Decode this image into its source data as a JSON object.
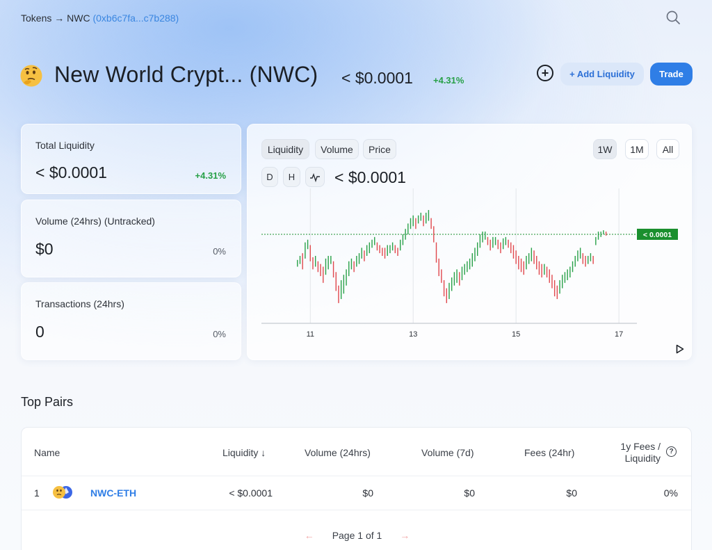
{
  "breadcrumb": {
    "root": "Tokens",
    "arrow": "→",
    "symbol": "NWC",
    "address": "(0xb6c7fa...c7b288)"
  },
  "header": {
    "emoji": "🤔",
    "title": "New World Crypt... (NWC)",
    "price": "< $0.0001",
    "change": "+4.31%",
    "add_liquidity_label": "+ Add Liquidity",
    "trade_label": "Trade"
  },
  "stats": [
    {
      "label": "Total Liquidity",
      "value": "< $0.0001",
      "change": "+4.31%",
      "positive": true
    },
    {
      "label": "Volume (24hrs) (Untracked)",
      "value": "$0",
      "change": "0%",
      "positive": false
    },
    {
      "label": "Transactions (24hrs)",
      "value": "0",
      "change": "0%",
      "positive": false
    }
  ],
  "chart_panel": {
    "tabs": [
      "Liquidity",
      "Volume",
      "Price"
    ],
    "ranges": [
      "1W",
      "1M",
      "All"
    ],
    "selected_range": "1W",
    "intervals": [
      "D",
      "H"
    ],
    "line_icon": "pulse-line-icon",
    "price": "< $0.0001",
    "last_label": "< 0.0001"
  },
  "chart_data": {
    "type": "candlestick",
    "title": "",
    "xlabel": "",
    "ylabel": "",
    "x_ticks": [
      "11",
      "13",
      "15",
      "17"
    ],
    "x_range": [
      10.05,
      17.35
    ],
    "y_range": [
      0,
      100
    ],
    "last_value_label": "< 0.0001",
    "last_value_level": 66,
    "colors": {
      "up": "#27a047",
      "down": "#e0474c",
      "last": "#1a8f2e"
    },
    "candles": [
      [
        10.75,
        42,
        47
      ],
      [
        10.8,
        44,
        50
      ],
      [
        10.85,
        40,
        52
      ],
      [
        10.9,
        48,
        60
      ],
      [
        10.95,
        55,
        62
      ],
      [
        11.0,
        46,
        58
      ],
      [
        11.05,
        40,
        49
      ],
      [
        11.1,
        42,
        50
      ],
      [
        11.15,
        38,
        46
      ],
      [
        11.2,
        35,
        44
      ],
      [
        11.25,
        30,
        42
      ],
      [
        11.3,
        36,
        48
      ],
      [
        11.35,
        40,
        50
      ],
      [
        11.4,
        44,
        50
      ],
      [
        11.45,
        34,
        46
      ],
      [
        11.5,
        24,
        38
      ],
      [
        11.55,
        15,
        28
      ],
      [
        11.6,
        18,
        32
      ],
      [
        11.65,
        22,
        36
      ],
      [
        11.7,
        28,
        40
      ],
      [
        11.75,
        35,
        46
      ],
      [
        11.8,
        40,
        48
      ],
      [
        11.85,
        38,
        46
      ],
      [
        11.9,
        42,
        50
      ],
      [
        11.95,
        44,
        52
      ],
      [
        12.0,
        48,
        56
      ],
      [
        12.05,
        46,
        54
      ],
      [
        12.1,
        50,
        58
      ],
      [
        12.15,
        52,
        60
      ],
      [
        12.2,
        56,
        62
      ],
      [
        12.25,
        58,
        64
      ],
      [
        12.3,
        54,
        60
      ],
      [
        12.35,
        52,
        58
      ],
      [
        12.4,
        50,
        56
      ],
      [
        12.45,
        48,
        56
      ],
      [
        12.5,
        50,
        58
      ],
      [
        12.55,
        52,
        58
      ],
      [
        12.6,
        54,
        60
      ],
      [
        12.65,
        52,
        58
      ],
      [
        12.7,
        50,
        56
      ],
      [
        12.75,
        54,
        62
      ],
      [
        12.8,
        58,
        66
      ],
      [
        12.85,
        62,
        70
      ],
      [
        12.9,
        66,
        74
      ],
      [
        12.95,
        70,
        78
      ],
      [
        13.0,
        72,
        80
      ],
      [
        13.05,
        70,
        78
      ],
      [
        13.1,
        74,
        80
      ],
      [
        13.15,
        76,
        82
      ],
      [
        13.2,
        72,
        80
      ],
      [
        13.25,
        74,
        82
      ],
      [
        13.3,
        76,
        84
      ],
      [
        13.35,
        70,
        78
      ],
      [
        13.4,
        60,
        72
      ],
      [
        13.45,
        45,
        60
      ],
      [
        13.5,
        35,
        48
      ],
      [
        13.55,
        30,
        40
      ],
      [
        13.6,
        20,
        32
      ],
      [
        13.65,
        15,
        26
      ],
      [
        13.7,
        18,
        30
      ],
      [
        13.75,
        24,
        34
      ],
      [
        13.8,
        28,
        38
      ],
      [
        13.85,
        30,
        40
      ],
      [
        13.9,
        28,
        38
      ],
      [
        13.95,
        32,
        42
      ],
      [
        14.0,
        36,
        44
      ],
      [
        14.05,
        38,
        46
      ],
      [
        14.1,
        40,
        48
      ],
      [
        14.15,
        42,
        52
      ],
      [
        14.2,
        46,
        56
      ],
      [
        14.25,
        50,
        60
      ],
      [
        14.3,
        56,
        66
      ],
      [
        14.35,
        60,
        68
      ],
      [
        14.4,
        62,
        68
      ],
      [
        14.45,
        58,
        64
      ],
      [
        14.5,
        54,
        62
      ],
      [
        14.55,
        56,
        64
      ],
      [
        14.6,
        58,
        64
      ],
      [
        14.65,
        55,
        62
      ],
      [
        14.7,
        52,
        60
      ],
      [
        14.75,
        55,
        63
      ],
      [
        14.8,
        58,
        64
      ],
      [
        14.85,
        56,
        62
      ],
      [
        14.9,
        52,
        60
      ],
      [
        14.95,
        48,
        58
      ],
      [
        15.0,
        44,
        54
      ],
      [
        15.05,
        40,
        50
      ],
      [
        15.1,
        38,
        48
      ],
      [
        15.15,
        36,
        46
      ],
      [
        15.2,
        40,
        50
      ],
      [
        15.25,
        44,
        52
      ],
      [
        15.3,
        46,
        56
      ],
      [
        15.35,
        44,
        54
      ],
      [
        15.4,
        40,
        50
      ],
      [
        15.45,
        36,
        46
      ],
      [
        15.5,
        34,
        44
      ],
      [
        15.55,
        36,
        44
      ],
      [
        15.6,
        34,
        42
      ],
      [
        15.65,
        30,
        40
      ],
      [
        15.7,
        26,
        36
      ],
      [
        15.75,
        20,
        32
      ],
      [
        15.8,
        18,
        28
      ],
      [
        15.85,
        22,
        32
      ],
      [
        15.9,
        26,
        36
      ],
      [
        15.95,
        30,
        38
      ],
      [
        16.0,
        32,
        40
      ],
      [
        16.05,
        34,
        42
      ],
      [
        16.1,
        38,
        46
      ],
      [
        16.15,
        42,
        50
      ],
      [
        16.2,
        46,
        54
      ],
      [
        16.25,
        48,
        56
      ],
      [
        16.3,
        44,
        52
      ],
      [
        16.35,
        42,
        50
      ],
      [
        16.4,
        44,
        50
      ],
      [
        16.45,
        46,
        52
      ],
      [
        16.5,
        44,
        50
      ],
      [
        16.55,
        58,
        64
      ],
      [
        16.6,
        62,
        68
      ],
      [
        16.65,
        64,
        68
      ],
      [
        16.7,
        66,
        69
      ],
      [
        16.75,
        65,
        68
      ]
    ]
  },
  "top_pairs": {
    "title": "Top Pairs",
    "columns": [
      "Name",
      "Liquidity ↓",
      "Volume (24hrs)",
      "Volume (7d)",
      "Fees (24hr)",
      "1y Fees /",
      "Liquidity"
    ],
    "rows": [
      {
        "index": "1",
        "pair": "NWC-ETH",
        "liquidity": "< $0.0001",
        "volume_24h": "$0",
        "volume_7d": "$0",
        "fees_24h": "$0",
        "fees_liquidity": "0%"
      }
    ],
    "pager": {
      "prev": "←",
      "text": "Page 1 of 1",
      "next": "→"
    }
  }
}
